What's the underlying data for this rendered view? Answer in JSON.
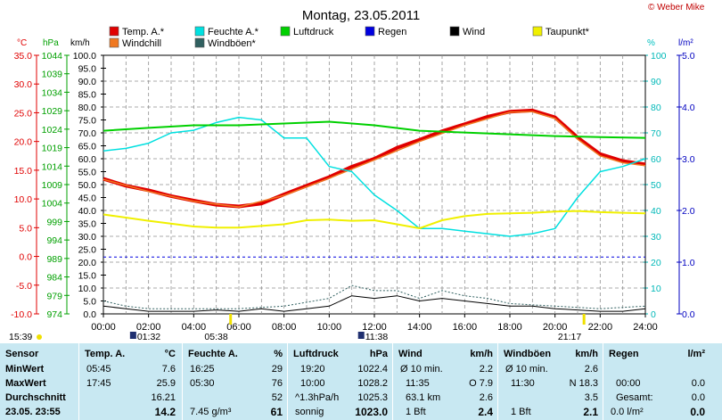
{
  "title": "Montag, 23.05.2011",
  "copyright": "© Weber Mike",
  "legend": [
    {
      "label": "Temp. A.*",
      "color": "#e00000"
    },
    {
      "label": "Feuchte A.*",
      "color": "#00e0e0"
    },
    {
      "label": "Luftdruck",
      "color": "#00d000"
    },
    {
      "label": "Regen",
      "color": "#0000e0"
    },
    {
      "label": "Wind",
      "color": "#000000"
    },
    {
      "label": "Taupunkt*",
      "color": "#f0f000"
    },
    {
      "label": "Windchill",
      "color": "#f07820"
    },
    {
      "label": "Windböen*",
      "color": "#306060"
    }
  ],
  "axis_units": {
    "temp": "°C",
    "pressure": "hPa",
    "wind": "km/h",
    "humidity": "%",
    "rain": "l/m²"
  },
  "markers": {
    "sunrise": "05:38",
    "sunset": "21:17",
    "day_start": "15:39",
    "moonrise": "01:32",
    "moonset": "11:38"
  },
  "chart_data": {
    "type": "line",
    "x_ticks": [
      "00:00",
      "02:00",
      "04:00",
      "06:00",
      "08:00",
      "10:00",
      "12:00",
      "14:00",
      "16:00",
      "18:00",
      "20:00",
      "22:00",
      "24:00"
    ],
    "axes": {
      "temp": {
        "ticks": [
          "35.0",
          "30.0",
          "25.0",
          "20.0",
          "15.0",
          "10.0",
          "5.0",
          "0.0",
          "-5.0",
          "-10.0"
        ],
        "range": [
          -10,
          35
        ]
      },
      "pressure": {
        "ticks": [
          "1044",
          "1039",
          "1034",
          "1029",
          "1024",
          "1019",
          "1014",
          "1009",
          "1004",
          "999",
          "994",
          "989",
          "984",
          "979",
          "974"
        ],
        "range": [
          974,
          1046
        ]
      },
      "wind": {
        "ticks": [
          "100.0",
          "95.0",
          "90.0",
          "85.0",
          "80.0",
          "75.0",
          "70.0",
          "65.0",
          "60.0",
          "55.0",
          "50.0",
          "45.0",
          "40.0",
          "35.0",
          "30.0",
          "25.0",
          "20.0",
          "15.0",
          "10.0",
          "5.0",
          "0.0"
        ],
        "range": [
          0,
          100
        ]
      },
      "humidity": {
        "ticks": [
          "100",
          "90",
          "80",
          "70",
          "60",
          "50",
          "40",
          "30",
          "20",
          "10",
          "0"
        ],
        "range": [
          0,
          100
        ]
      },
      "rain": {
        "ticks": [
          "5.0",
          "4.0",
          "3.0",
          "2.0",
          "1.0",
          "0.0"
        ],
        "range": [
          0,
          5
        ]
      }
    },
    "series": [
      {
        "name": "Temp. A.*",
        "axis": "temp",
        "color": "#e00000",
        "width": 4,
        "points": [
          [
            0,
            13.5
          ],
          [
            1,
            12.3
          ],
          [
            2,
            11.5
          ],
          [
            3,
            10.5
          ],
          [
            4,
            9.7
          ],
          [
            5,
            9.0
          ],
          [
            6,
            8.7
          ],
          [
            7,
            9.2
          ],
          [
            8,
            10.8
          ],
          [
            9,
            12.3
          ],
          [
            10,
            13.8
          ],
          [
            11,
            15.6
          ],
          [
            12,
            17.0
          ],
          [
            13,
            18.9
          ],
          [
            14,
            20.3
          ],
          [
            15,
            21.8
          ],
          [
            16,
            23.0
          ],
          [
            17,
            24.3
          ],
          [
            18,
            25.2
          ],
          [
            19,
            25.4
          ],
          [
            20,
            24.2
          ],
          [
            21,
            20.7
          ],
          [
            22,
            17.8
          ],
          [
            23,
            16.6
          ],
          [
            24,
            16.0
          ]
        ]
      },
      {
        "name": "Windchill",
        "axis": "temp",
        "color": "#f07820",
        "width": 1.5,
        "points": [
          [
            0,
            13.4
          ],
          [
            2,
            11.3
          ],
          [
            4,
            9.6
          ],
          [
            6,
            8.6
          ],
          [
            8,
            10.6
          ],
          [
            10,
            13.6
          ],
          [
            12,
            16.8
          ],
          [
            14,
            20.0
          ],
          [
            16,
            22.8
          ],
          [
            18,
            25.1
          ],
          [
            19,
            25.2
          ],
          [
            20,
            24.0
          ],
          [
            21,
            20.4
          ],
          [
            22,
            17.5
          ],
          [
            23,
            16.3
          ],
          [
            24,
            15.8
          ]
        ]
      },
      {
        "name": "Feuchte A.*",
        "axis": "humidity",
        "color": "#00e0e0",
        "width": 1.5,
        "points": [
          [
            0,
            63
          ],
          [
            1,
            64
          ],
          [
            2,
            66
          ],
          [
            3,
            70
          ],
          [
            4,
            71
          ],
          [
            5,
            74
          ],
          [
            6,
            76
          ],
          [
            7,
            75
          ],
          [
            8,
            68
          ],
          [
            9,
            68
          ],
          [
            10,
            57
          ],
          [
            11,
            55
          ],
          [
            12,
            46
          ],
          [
            13,
            40
          ],
          [
            14,
            33
          ],
          [
            15,
            33
          ],
          [
            16,
            32
          ],
          [
            17,
            31
          ],
          [
            18,
            30
          ],
          [
            19,
            31
          ],
          [
            20,
            33
          ],
          [
            21,
            45
          ],
          [
            22,
            55
          ],
          [
            23,
            57
          ],
          [
            24,
            60
          ]
        ]
      },
      {
        "name": "Luftdruck",
        "axis": "pressure",
        "color": "#00d000",
        "width": 2,
        "points": [
          [
            0,
            1025
          ],
          [
            2,
            1025.8
          ],
          [
            4,
            1026.5
          ],
          [
            6,
            1026.5
          ],
          [
            8,
            1027
          ],
          [
            10,
            1027.5
          ],
          [
            12,
            1026.5
          ],
          [
            14,
            1025
          ],
          [
            16,
            1024.5
          ],
          [
            18,
            1024
          ],
          [
            20,
            1023.5
          ],
          [
            22,
            1023.2
          ],
          [
            24,
            1023
          ]
        ]
      },
      {
        "name": "Taupunkt*",
        "axis": "temp",
        "color": "#f0f000",
        "width": 2,
        "points": [
          [
            0,
            7.3
          ],
          [
            2,
            6.2
          ],
          [
            4,
            5.2
          ],
          [
            5,
            5.0
          ],
          [
            6,
            5.0
          ],
          [
            7,
            5.3
          ],
          [
            8,
            5.6
          ],
          [
            9,
            6.3
          ],
          [
            10,
            6.4
          ],
          [
            11,
            6.2
          ],
          [
            12,
            6.3
          ],
          [
            13,
            5.6
          ],
          [
            14,
            4.9
          ],
          [
            15,
            6.3
          ],
          [
            16,
            7.0
          ],
          [
            17,
            7.4
          ],
          [
            18,
            7.5
          ],
          [
            19,
            7.6
          ],
          [
            20,
            7.8
          ],
          [
            21,
            7.9
          ],
          [
            22,
            7.7
          ],
          [
            23,
            7.6
          ],
          [
            24,
            7.5
          ]
        ]
      },
      {
        "name": "Wind",
        "axis": "wind",
        "color": "#000000",
        "width": 1,
        "points": [
          [
            0,
            3
          ],
          [
            1,
            2
          ],
          [
            2,
            1
          ],
          [
            3,
            1
          ],
          [
            4,
            1
          ],
          [
            5,
            1.5
          ],
          [
            6,
            1
          ],
          [
            7,
            2
          ],
          [
            8,
            1
          ],
          [
            9,
            2
          ],
          [
            10,
            3
          ],
          [
            11,
            7
          ],
          [
            12,
            6
          ],
          [
            13,
            7
          ],
          [
            14,
            5
          ],
          [
            15,
            6
          ],
          [
            16,
            5
          ],
          [
            17,
            4
          ],
          [
            18,
            3
          ],
          [
            19,
            3
          ],
          [
            20,
            2
          ],
          [
            21,
            1.5
          ],
          [
            22,
            1
          ],
          [
            23,
            1
          ],
          [
            24,
            2
          ]
        ]
      },
      {
        "name": "Windböen*",
        "axis": "wind",
        "color": "#306060",
        "width": 1,
        "dash": "2,2",
        "points": [
          [
            0,
            5
          ],
          [
            1,
            3
          ],
          [
            2,
            2
          ],
          [
            4,
            2
          ],
          [
            6,
            2
          ],
          [
            8,
            3
          ],
          [
            10,
            6
          ],
          [
            11,
            11
          ],
          [
            12,
            9
          ],
          [
            13,
            9
          ],
          [
            14,
            6
          ],
          [
            15,
            9
          ],
          [
            16,
            7
          ],
          [
            17,
            6
          ],
          [
            18,
            4
          ],
          [
            20,
            3
          ],
          [
            22,
            2
          ],
          [
            24,
            3
          ]
        ]
      },
      {
        "name": "Regen",
        "axis": "rain",
        "color": "#0000e0",
        "width": 1,
        "dash": "3,3",
        "points": [
          [
            0,
            1.1
          ],
          [
            24,
            1.1
          ]
        ]
      }
    ]
  },
  "table": {
    "headers": {
      "sensor": "Sensor",
      "temp": "Temp. A.",
      "temp_unit": "°C",
      "hum": "Feuchte A.",
      "hum_unit": "%",
      "press": "Luftdruck",
      "press_unit": "hPa",
      "wind": "Wind",
      "wind_unit": "km/h",
      "gust": "Windböen",
      "gust_unit": "km/h",
      "rain": "Regen",
      "rain_unit": "l/m²"
    },
    "rows": [
      {
        "label": "MinWert",
        "t_time": "05:45",
        "t_val": "7.6",
        "h_time": "16:25",
        "h_val": "29",
        "p_time": "19:20",
        "p_val": "1022.4",
        "w_time": "Ø 10 min.",
        "w_val": "2.2",
        "g_time": "Ø 10 min.",
        "g_val": "2.6",
        "r_time": "",
        "r_val": ""
      },
      {
        "label": "MaxWert",
        "t_time": "17:45",
        "t_val": "25.9",
        "h_time": "05:30",
        "h_val": "76",
        "p_time": "10:00",
        "p_val": "1028.2",
        "w_time": "11:35",
        "w_val": "O 7.9",
        "g_time": "11:30",
        "g_val": "N 18.3",
        "r_time": "00:00",
        "r_val": "0.0"
      },
      {
        "label": "Durchschnitt",
        "t_time": "",
        "t_val": "16.21",
        "h_time": "",
        "h_val": "52",
        "p_time": "^1.3hPa/h",
        "p_val": "1025.3",
        "w_time": "63.1 km",
        "w_val": "2.6",
        "g_time": "",
        "g_val": "3.5",
        "r_time": "Gesamt:",
        "r_val": "0.0"
      },
      {
        "label": "23.05. 23:55",
        "t_time": "",
        "t_val": "14.2",
        "h_time": "7.45 g/m³",
        "h_val": "61",
        "p_time": "sonnig",
        "p_val": "1023.0",
        "w_time": "1 Bft",
        "w_val": "2.4",
        "g_time": "1 Bft",
        "g_val": "2.1",
        "r_time": "0.0 l/m²",
        "r_val": "0.0"
      }
    ]
  }
}
